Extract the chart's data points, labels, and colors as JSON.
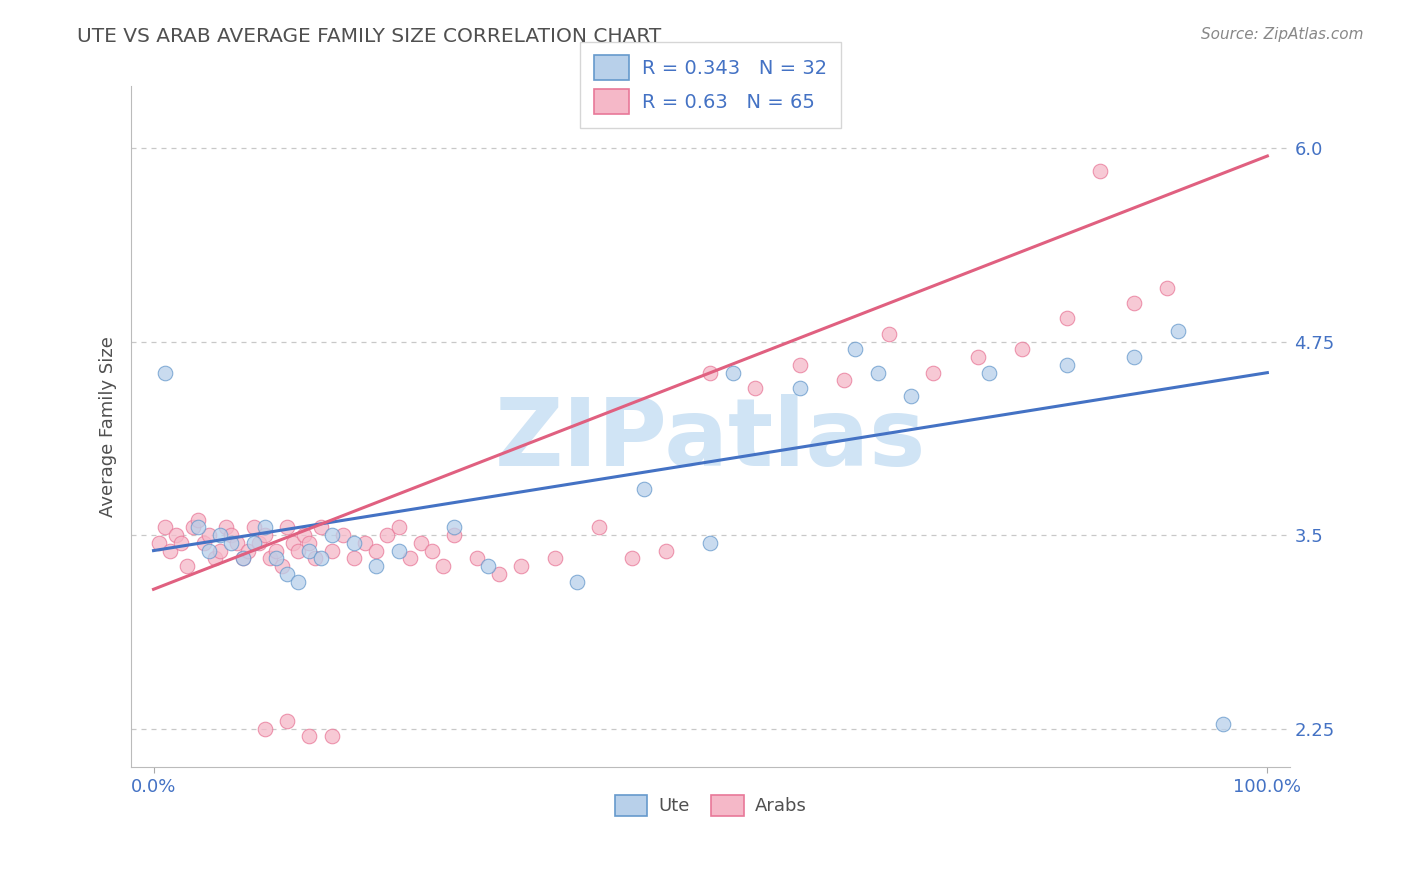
{
  "title": "UTE VS ARAB AVERAGE FAMILY SIZE CORRELATION CHART",
  "source": "Source: ZipAtlas.com",
  "ylabel": "Average Family Size",
  "ute_label": "Ute",
  "arab_label": "Arabs",
  "ute_R": 0.343,
  "ute_N": 32,
  "arab_R": 0.63,
  "arab_N": 65,
  "xlim": [
    -0.02,
    1.02
  ],
  "ylim": [
    2.0,
    6.4
  ],
  "yticks": [
    2.25,
    3.5,
    4.75,
    6.0
  ],
  "xticks": [
    0.0,
    1.0
  ],
  "xticklabels": [
    "0.0%",
    "100.0%"
  ],
  "bg_color": "#ffffff",
  "grid_color": "#c8c8c8",
  "ute_color": "#b8d0ea",
  "ute_edge_color": "#6699cc",
  "ute_line_color": "#4472c4",
  "arab_color": "#f5b8c8",
  "arab_edge_color": "#e87898",
  "arab_line_color": "#e06080",
  "title_color": "#505050",
  "source_color": "#888888",
  "watermark_color": "#d0e4f5",
  "legend_text_color": "#4472c4",
  "ute_scatter_x": [
    0.01,
    0.04,
    0.05,
    0.06,
    0.07,
    0.08,
    0.09,
    0.1,
    0.11,
    0.12,
    0.13,
    0.14,
    0.15,
    0.16,
    0.18,
    0.2,
    0.22,
    0.27,
    0.3,
    0.38,
    0.44,
    0.5,
    0.52,
    0.58,
    0.63,
    0.65,
    0.68,
    0.75,
    0.82,
    0.88,
    0.92,
    0.96
  ],
  "ute_scatter_y": [
    4.55,
    3.55,
    3.4,
    3.5,
    3.45,
    3.35,
    3.45,
    3.55,
    3.35,
    3.25,
    3.2,
    3.4,
    3.35,
    3.5,
    3.45,
    3.3,
    3.4,
    3.55,
    3.3,
    3.2,
    3.8,
    3.45,
    4.55,
    4.45,
    4.7,
    4.55,
    4.4,
    4.55,
    4.6,
    4.65,
    4.82,
    2.28
  ],
  "arab_scatter_x": [
    0.005,
    0.01,
    0.015,
    0.02,
    0.025,
    0.03,
    0.035,
    0.04,
    0.045,
    0.05,
    0.055,
    0.06,
    0.065,
    0.07,
    0.075,
    0.08,
    0.085,
    0.09,
    0.095,
    0.1,
    0.105,
    0.11,
    0.115,
    0.12,
    0.125,
    0.13,
    0.135,
    0.14,
    0.145,
    0.15,
    0.16,
    0.17,
    0.18,
    0.19,
    0.2,
    0.21,
    0.22,
    0.23,
    0.24,
    0.25,
    0.26,
    0.27,
    0.29,
    0.31,
    0.33,
    0.36,
    0.4,
    0.43,
    0.46,
    0.5,
    0.54,
    0.58,
    0.62,
    0.66,
    0.7,
    0.74,
    0.78,
    0.82,
    0.85,
    0.88,
    0.91,
    0.1,
    0.12,
    0.14,
    0.16
  ],
  "arab_scatter_y": [
    3.45,
    3.55,
    3.4,
    3.5,
    3.45,
    3.3,
    3.55,
    3.6,
    3.45,
    3.5,
    3.35,
    3.4,
    3.55,
    3.5,
    3.45,
    3.35,
    3.4,
    3.55,
    3.45,
    3.5,
    3.35,
    3.4,
    3.3,
    3.55,
    3.45,
    3.4,
    3.5,
    3.45,
    3.35,
    3.55,
    3.4,
    3.5,
    3.35,
    3.45,
    3.4,
    3.5,
    3.55,
    3.35,
    3.45,
    3.4,
    3.3,
    3.5,
    3.35,
    3.25,
    3.3,
    3.35,
    3.55,
    3.35,
    3.4,
    4.55,
    4.45,
    4.6,
    4.5,
    4.8,
    4.55,
    4.65,
    4.7,
    4.9,
    5.85,
    5.0,
    5.1,
    2.25,
    2.3,
    2.2,
    2.2
  ],
  "ute_trend_x": [
    0.0,
    1.0
  ],
  "ute_trend_y": [
    3.4,
    4.55
  ],
  "arab_trend_x": [
    0.0,
    1.0
  ],
  "arab_trend_y": [
    3.15,
    5.95
  ]
}
